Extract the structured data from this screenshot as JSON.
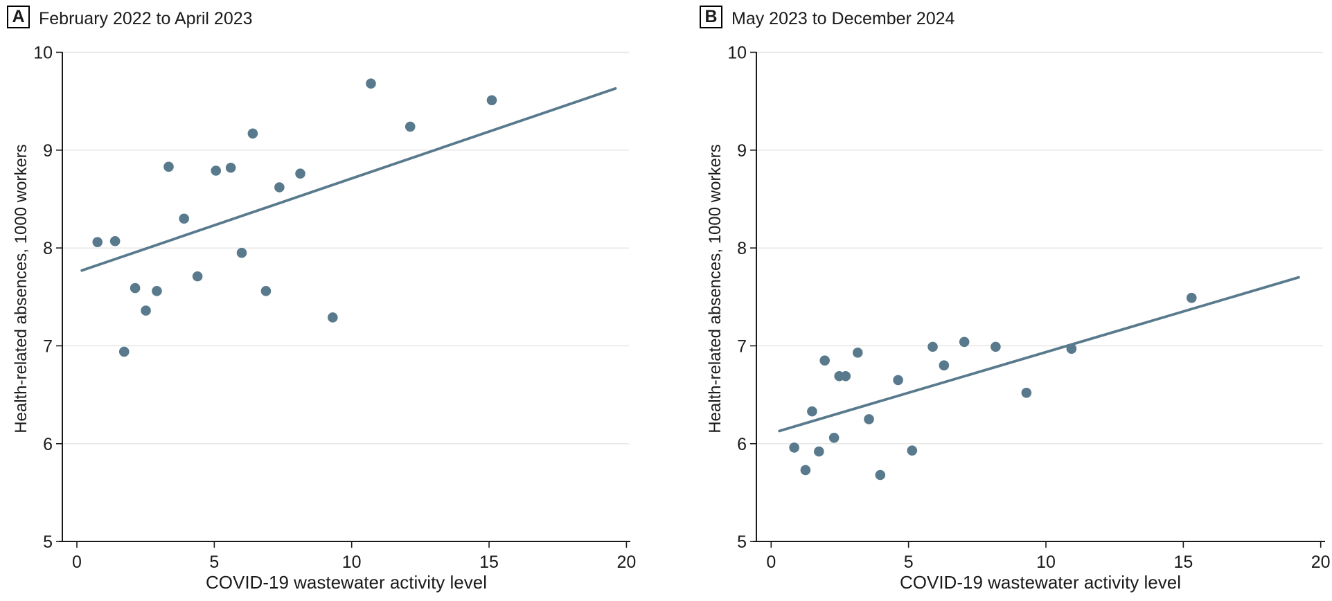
{
  "style": {
    "point_color": "#597a8c",
    "trend_color": "#587a8c",
    "gridline_color": "#e4e4e4",
    "axis_color": "#1a1a1a",
    "text_color": "#1a1a1a"
  },
  "chart_data": [
    {
      "type": "scatter",
      "panel_label": "A",
      "title": "February 2022 to April 2023",
      "xlabel": "COVID-19 wastewater activity level",
      "ylabel": "Health-related absences, 1000 workers",
      "xlim": [
        0,
        20
      ],
      "ylim": [
        5,
        10
      ],
      "xticks": [
        0,
        5,
        10,
        15,
        20
      ],
      "yticks": [
        5,
        6,
        7,
        8,
        9,
        10
      ],
      "grid": "horizontal",
      "legend": "none",
      "points": [
        [
          0.75,
          8.06
        ],
        [
          1.39,
          8.07
        ],
        [
          1.72,
          6.94
        ],
        [
          2.12,
          7.59
        ],
        [
          2.51,
          7.36
        ],
        [
          2.91,
          7.56
        ],
        [
          3.34,
          8.83
        ],
        [
          3.9,
          8.3
        ],
        [
          4.39,
          7.71
        ],
        [
          5.06,
          8.79
        ],
        [
          5.6,
          8.82
        ],
        [
          6.0,
          7.95
        ],
        [
          6.4,
          9.17
        ],
        [
          6.88,
          7.56
        ],
        [
          7.37,
          8.62
        ],
        [
          8.13,
          8.76
        ],
        [
          9.31,
          7.29
        ],
        [
          10.7,
          9.68
        ],
        [
          12.13,
          9.24
        ],
        [
          15.1,
          9.51
        ]
      ],
      "trendline": {
        "x1": 0.18,
        "y1": 7.77,
        "x2": 19.6,
        "y2": 9.63
      }
    },
    {
      "type": "scatter",
      "panel_label": "B",
      "title": "May 2023 to December 2024",
      "xlabel": "COVID-19 wastewater activity level",
      "ylabel": "Health-related absences, 1000 workers",
      "xlim": [
        0,
        20
      ],
      "ylim": [
        5,
        10
      ],
      "xticks": [
        0,
        5,
        10,
        15,
        20
      ],
      "yticks": [
        5,
        6,
        7,
        8,
        9,
        10
      ],
      "grid": "horizontal",
      "legend": "none",
      "points": [
        [
          0.84,
          5.96
        ],
        [
          1.25,
          5.73
        ],
        [
          1.49,
          6.33
        ],
        [
          1.74,
          5.92
        ],
        [
          1.95,
          6.85
        ],
        [
          2.29,
          6.06
        ],
        [
          2.48,
          6.69
        ],
        [
          2.71,
          6.69
        ],
        [
          3.15,
          6.93
        ],
        [
          3.56,
          6.25
        ],
        [
          3.97,
          5.68
        ],
        [
          4.62,
          6.65
        ],
        [
          5.13,
          5.93
        ],
        [
          5.88,
          6.99
        ],
        [
          6.29,
          6.8
        ],
        [
          7.03,
          7.04
        ],
        [
          8.17,
          6.99
        ],
        [
          9.29,
          6.52
        ],
        [
          10.93,
          6.97
        ],
        [
          15.3,
          7.49
        ]
      ],
      "trendline": {
        "x1": 0.3,
        "y1": 6.13,
        "x2": 19.2,
        "y2": 7.7
      }
    }
  ]
}
